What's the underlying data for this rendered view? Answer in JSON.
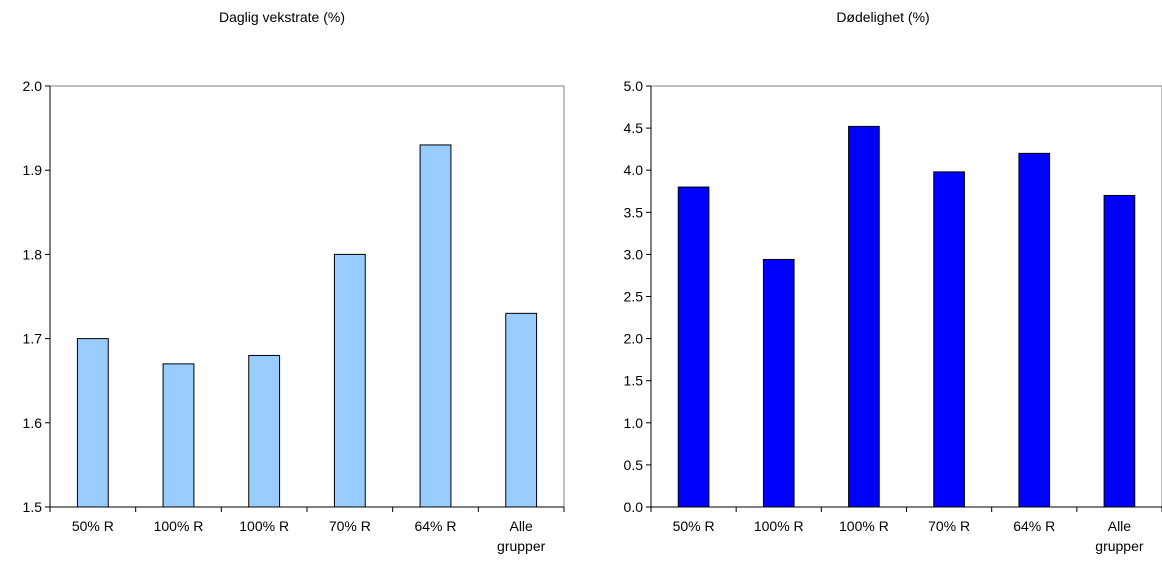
{
  "chart_data": [
    {
      "type": "bar",
      "title": "Daglig vekstrate (%)",
      "xlabel": "",
      "ylabel": "",
      "categories": [
        [
          "50% R"
        ],
        [
          "100% R"
        ],
        [
          "100% R"
        ],
        [
          "70% R"
        ],
        [
          "64% R"
        ],
        [
          "Alle",
          "grupper"
        ]
      ],
      "values": [
        1.7,
        1.67,
        1.68,
        1.8,
        1.93,
        1.73
      ],
      "ylim": [
        1.5,
        2.0
      ],
      "yticks": [
        "1.5",
        "1.6",
        "1.7",
        "1.8",
        "1.9",
        "2.0"
      ],
      "bar_color": "#99ccff",
      "grid": false,
      "legend": "none"
    },
    {
      "type": "bar",
      "title": "Dødelighet (%)",
      "xlabel": "",
      "ylabel": "",
      "categories": [
        [
          "50% R"
        ],
        [
          "100% R"
        ],
        [
          "100% R"
        ],
        [
          "70% R"
        ],
        [
          "64% R"
        ],
        [
          "Alle",
          "grupper"
        ]
      ],
      "values": [
        3.8,
        2.94,
        4.52,
        3.98,
        4.2,
        3.7
      ],
      "ylim": [
        0.0,
        5.0
      ],
      "yticks": [
        "0.0",
        "0.5",
        "1.0",
        "1.5",
        "2.0",
        "2.5",
        "3.0",
        "3.5",
        "4.0",
        "4.5",
        "5.0"
      ],
      "bar_color": "#0000ff",
      "grid": false,
      "legend": "none"
    }
  ]
}
